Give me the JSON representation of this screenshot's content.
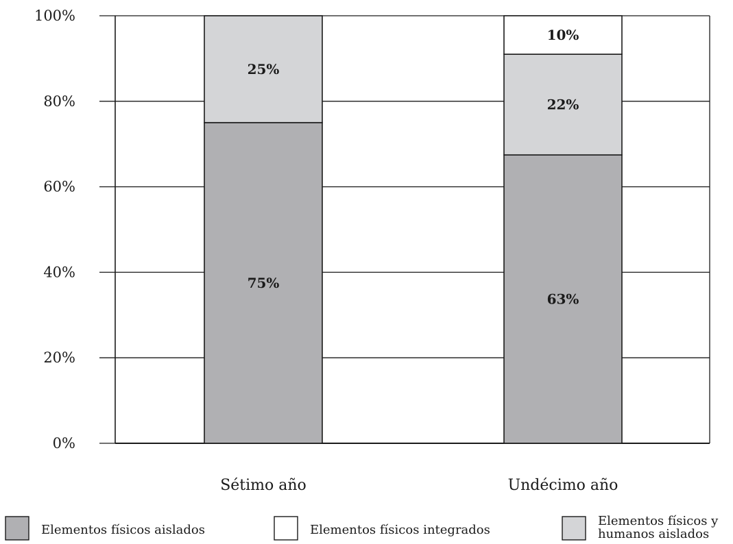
{
  "chart_data": {
    "type": "bar",
    "stacked": true,
    "categories": [
      "Sétimo año",
      "Undécimo año"
    ],
    "series": [
      {
        "name": "Elementos  físicos aislados",
        "values": [
          75,
          63
        ],
        "labels": [
          "75%",
          "63%"
        ],
        "color": "#b0b0b3"
      },
      {
        "name": "Elementos físicos y humanos aislados",
        "values": [
          25,
          22
        ],
        "labels": [
          "25%",
          "22%"
        ],
        "color": "#d4d5d7"
      },
      {
        "name": "Elementos  físicos integrados",
        "values": [
          0,
          10
        ],
        "labels": [
          "",
          "10%"
        ],
        "color": "#ffffff"
      }
    ],
    "yticks": [
      "0%",
      "20%",
      "40%",
      "60%",
      "80%",
      "100%"
    ],
    "ylim": [
      0,
      100
    ],
    "grid": true,
    "legend_position": "bottom"
  },
  "legend": [
    {
      "lines": [
        "Elementos  físicos aislados"
      ],
      "color": "#b0b0b3"
    },
    {
      "lines": [
        "Elementos  físicos integrados"
      ],
      "color": "#ffffff"
    },
    {
      "lines": [
        "Elementos  físicos y",
        "humanos aislados"
      ],
      "color": "#d4d5d7"
    }
  ]
}
